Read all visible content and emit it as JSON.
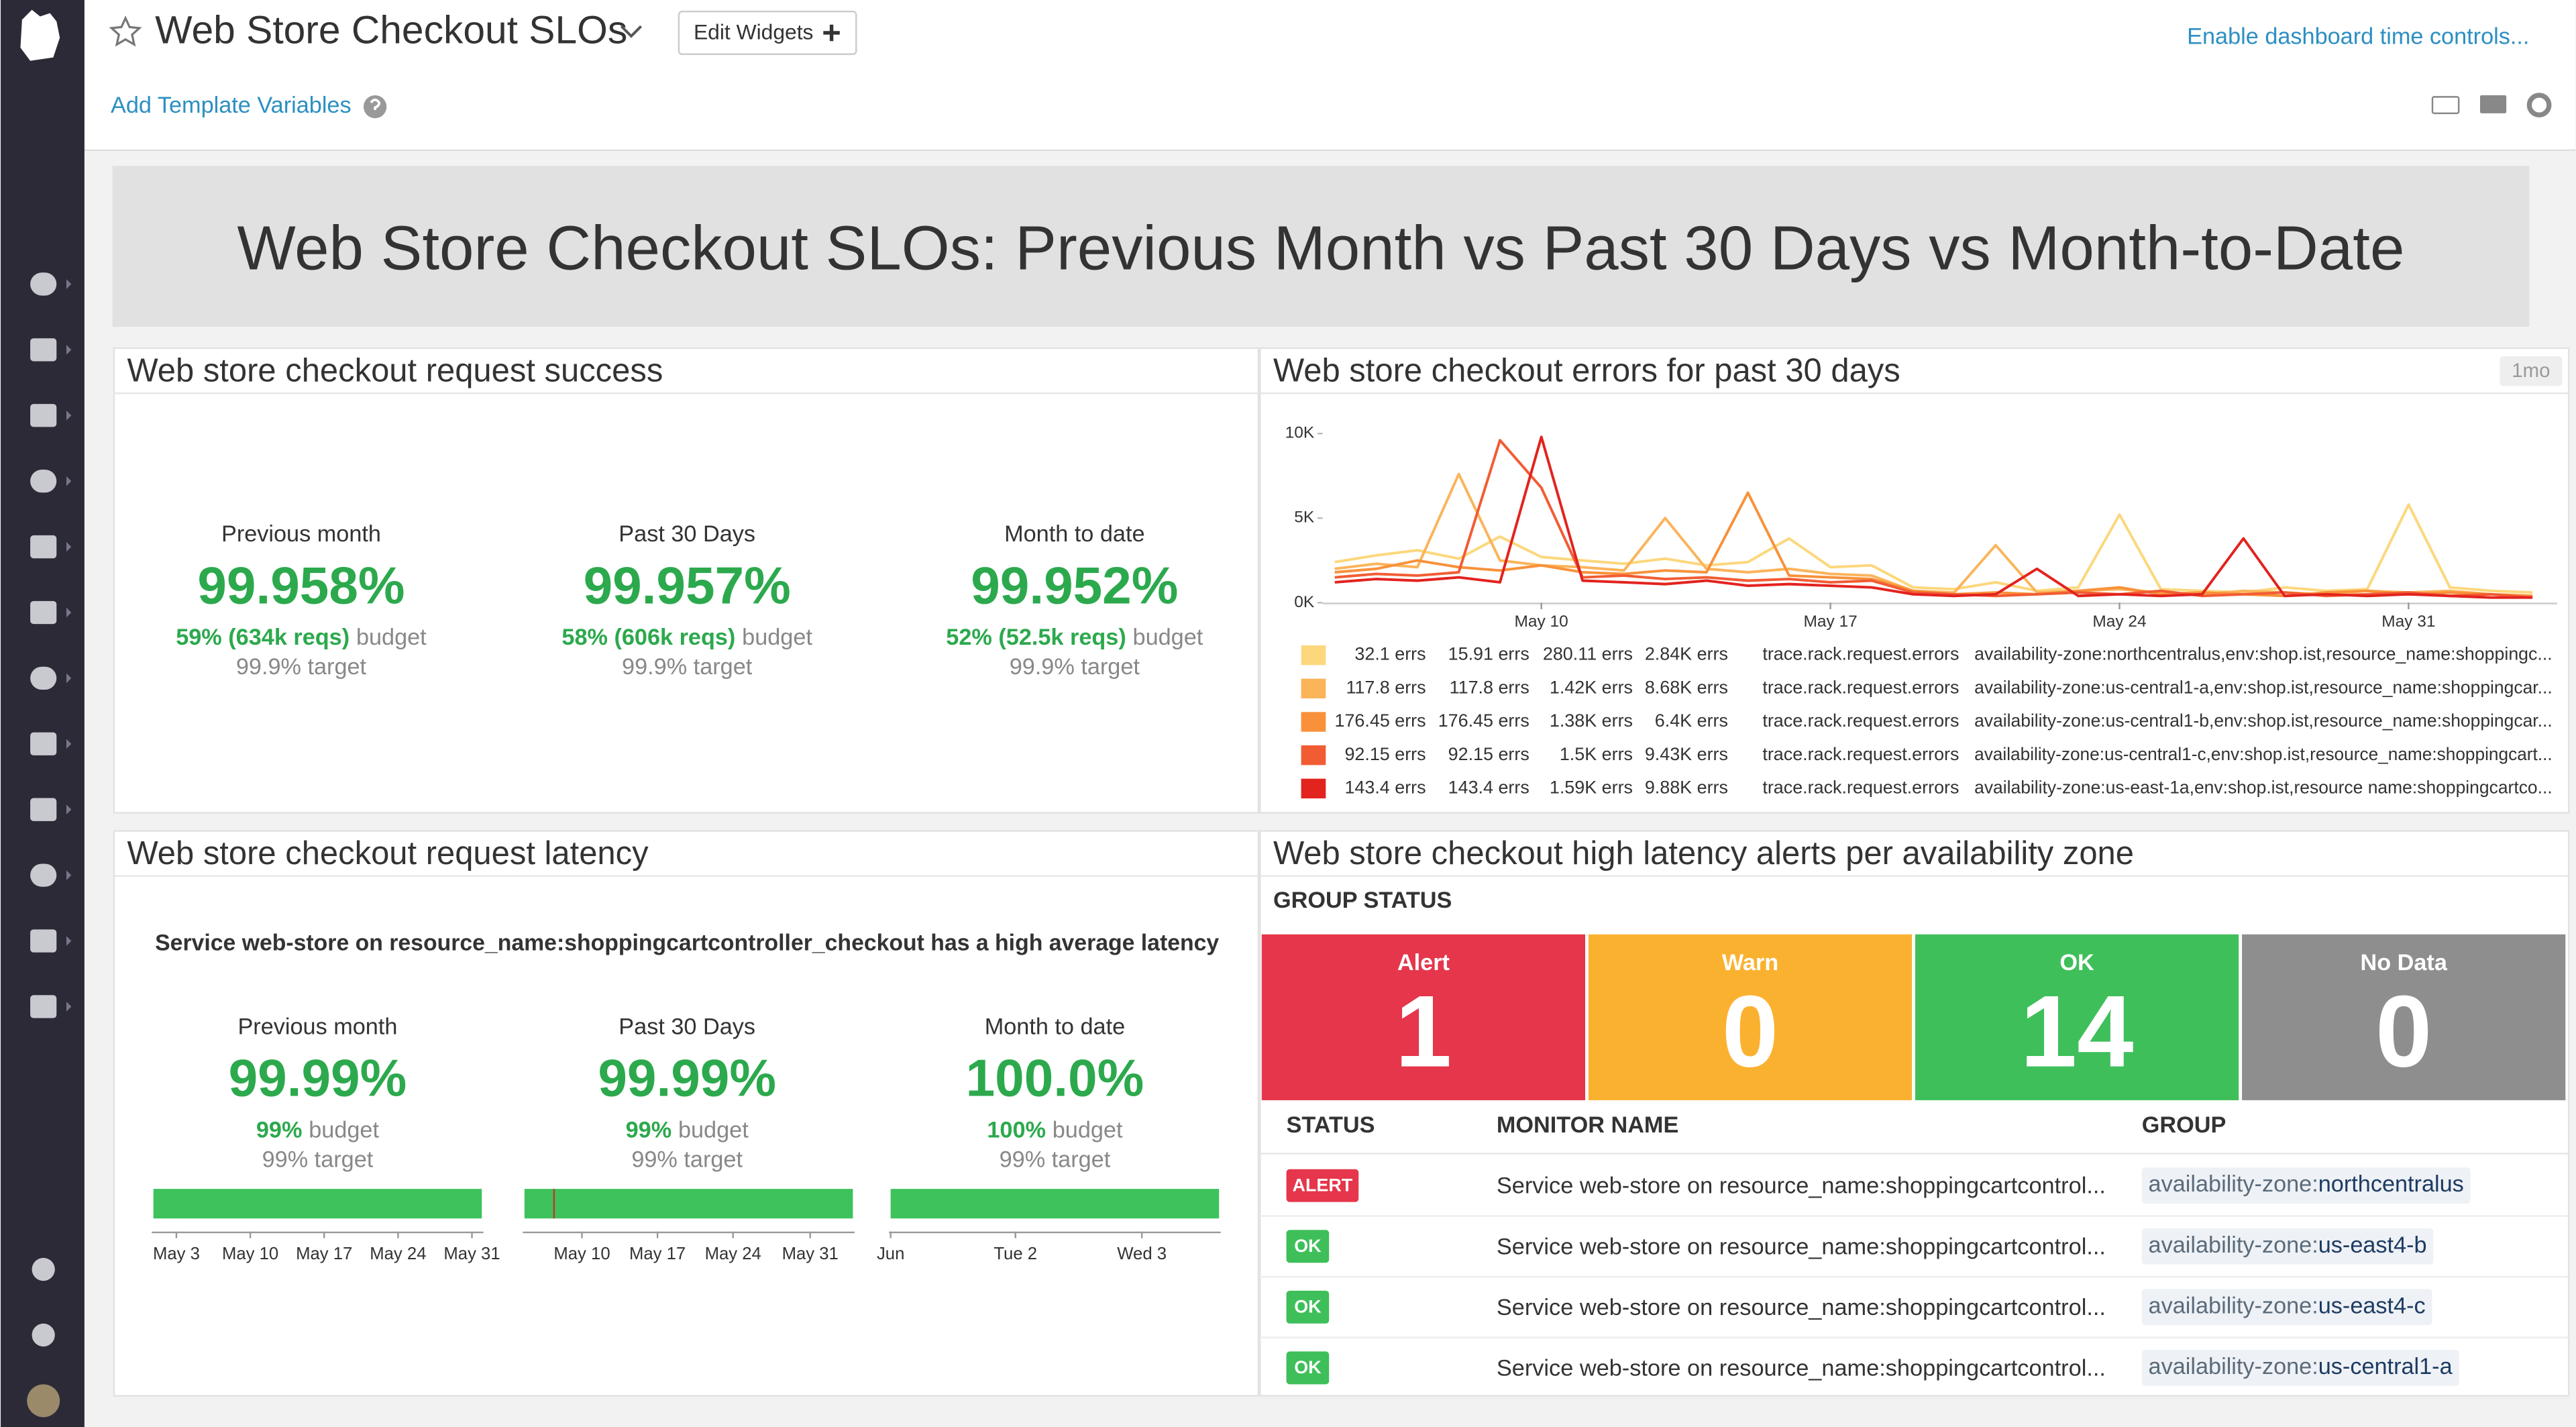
{
  "header": {
    "title": "Web Store Checkout SLOs",
    "edit_button": "Edit Widgets",
    "time_controls": "Enable dashboard time controls...",
    "template_variables": "Add Template Variables"
  },
  "banner": "Web Store Checkout SLOs: Previous Month vs Past 30 Days vs Month-to-Date",
  "slo_success": {
    "title": "Web store checkout request success",
    "columns": [
      {
        "label": "Previous month",
        "value": "99.958%",
        "budget_highlight": "59% (634k reqs)",
        "budget_text": "budget",
        "target": "99.9% target"
      },
      {
        "label": "Past 30 Days",
        "value": "99.957%",
        "budget_highlight": "58% (606k reqs)",
        "budget_text": "budget",
        "target": "99.9% target"
      },
      {
        "label": "Month to date",
        "value": "99.952%",
        "budget_highlight": "52% (52.5k reqs)",
        "budget_text": "budget",
        "target": "99.9% target"
      }
    ]
  },
  "chart_data": {
    "type": "line",
    "title": "Web store checkout errors for past 30 days",
    "time_badge": "1mo",
    "x": [
      5,
      6,
      7,
      8,
      9,
      10,
      11,
      12,
      13,
      14,
      15,
      16,
      17,
      18,
      19,
      20,
      21,
      22,
      23,
      24,
      25,
      26,
      27,
      28,
      29,
      30,
      31,
      32,
      33,
      34
    ],
    "xlim": [
      4.7,
      34.6
    ],
    "xticks": [
      {
        "value": 10,
        "label": "May 10"
      },
      {
        "value": 17,
        "label": "May 17"
      },
      {
        "value": 24,
        "label": "May 24"
      },
      {
        "value": 31,
        "label": "May 31"
      }
    ],
    "ylim": [
      0,
      10000
    ],
    "yticks": [
      {
        "value": 10000,
        "label": "10K"
      },
      {
        "value": 5000,
        "label": "5K"
      },
      {
        "value": 0,
        "label": "0K"
      }
    ],
    "grid": false,
    "series": [
      {
        "name": "availability-zone:northcentralus,env:shop.ist,resource_name:shoppingc...",
        "color": "#fcd77c",
        "metric": "trace.rack.request.errors",
        "stats": [
          "32.1 errs",
          "15.91 errs",
          "280.11 errs",
          "2.84K errs"
        ],
        "values": [
          2400,
          2800,
          3100,
          2600,
          3900,
          2700,
          2500,
          2300,
          2600,
          2200,
          2400,
          3800,
          2100,
          2200,
          900,
          800,
          1200,
          700,
          900,
          5200,
          800,
          700,
          600,
          900,
          700,
          800,
          5800,
          900,
          700,
          600
        ]
      },
      {
        "name": "availability-zone:us-central1-a,env:shop.ist,resource_name:shoppingcar...",
        "color": "#fbb45a",
        "metric": "trace.rack.request.errors",
        "stats": [
          "117.8 errs",
          "117.8 errs",
          "1.42K errs",
          "8.68K errs"
        ],
        "values": [
          2000,
          2300,
          2100,
          7600,
          2500,
          2200,
          2100,
          1900,
          5000,
          2000,
          1800,
          2000,
          1700,
          1600,
          700,
          600,
          3400,
          600,
          700,
          800,
          600,
          500,
          700,
          600,
          500,
          700,
          600,
          700,
          500,
          400
        ]
      },
      {
        "name": "availability-zone:us-central1-b,env:shop.ist,resource_name:shoppingcar...",
        "color": "#f8913a",
        "metric": "trace.rack.request.errors",
        "stats": [
          "176.45 errs",
          "176.45 errs",
          "1.38K errs",
          "6.4K errs"
        ],
        "values": [
          1800,
          2000,
          2500,
          2100,
          1900,
          2200,
          1800,
          1700,
          1900,
          1800,
          6500,
          1600,
          1500,
          1400,
          700,
          500,
          600,
          500,
          700,
          900,
          500,
          600,
          500,
          400,
          600,
          700,
          500,
          600,
          500,
          400
        ]
      },
      {
        "name": "availability-zone:us-central1-c,env:shop.ist,resource_name:shoppingcart...",
        "color": "#f25c33",
        "metric": "trace.rack.request.errors",
        "stats": [
          "92.15 errs",
          "92.15 errs",
          "1.5K errs",
          "9.43K errs"
        ],
        "values": [
          1500,
          1700,
          1600,
          1800,
          9600,
          6800,
          1500,
          1600,
          1400,
          1500,
          1300,
          1400,
          1200,
          1300,
          600,
          500,
          400,
          500,
          600,
          500,
          700,
          400,
          500,
          600,
          400,
          500,
          600,
          400,
          500,
          300
        ]
      },
      {
        "name": "availability-zone:us-east-1a,env:shop.ist,resource name:shoppingcartco...",
        "color": "#e2231e",
        "metric": "trace.rack.request.errors",
        "stats": [
          "143.4 errs",
          "143.4 errs",
          "1.59K errs",
          "9.88K errs"
        ],
        "values": [
          1200,
          1400,
          1300,
          1500,
          1200,
          9800,
          1300,
          1200,
          1100,
          1300,
          1000,
          1100,
          1000,
          900,
          500,
          400,
          500,
          2000,
          400,
          500,
          400,
          500,
          3800,
          400,
          500,
          400,
          500,
          400,
          300,
          300
        ]
      }
    ]
  },
  "latency": {
    "title": "Web store checkout request latency",
    "monitor": "Service web-store on resource_name:shoppingcartcontroller_checkout has a high average latency",
    "columns": [
      {
        "label": "Previous month",
        "value": "99.99%",
        "budget_highlight": "99%",
        "budget_text": "budget",
        "target": "99% target",
        "axis_labels": [
          "May 3",
          "May 10",
          "May 17",
          "May 24",
          "May 31"
        ]
      },
      {
        "label": "Past 30 Days",
        "value": "99.99%",
        "budget_highlight": "99%",
        "budget_text": "budget",
        "target": "99% target",
        "axis_labels": [
          "May 10",
          "May 17",
          "May 24",
          "May 31"
        ]
      },
      {
        "label": "Month to date",
        "value": "100.0%",
        "budget_highlight": "100%",
        "budget_text": "budget",
        "target": "99% target",
        "axis_labels": [
          "Jun",
          "Tue 2",
          "Wed 3"
        ]
      }
    ]
  },
  "alerts": {
    "title": "Web store checkout high latency alerts per availability zone",
    "group_status": "GROUP STATUS",
    "tiles": [
      {
        "label": "Alert",
        "count": 1,
        "color": "#e5364b"
      },
      {
        "label": "Warn",
        "count": 0,
        "color": "#fbb130"
      },
      {
        "label": "OK",
        "count": 14,
        "color": "#3ebf5a"
      },
      {
        "label": "No Data",
        "count": 0,
        "color": "#8e8e8e"
      }
    ],
    "columns": [
      "STATUS",
      "MONITOR NAME",
      "GROUP"
    ],
    "rows": [
      {
        "status": "ALERT",
        "status_color": "#e5364b",
        "monitor": "Service web-store on resource_name:shoppingcartcontrol...",
        "group_key": "availability-zone:",
        "group_value": "northcentralus"
      },
      {
        "status": "OK",
        "status_color": "#3ebf5a",
        "monitor": "Service web-store on resource_name:shoppingcartcontrol...",
        "group_key": "availability-zone:",
        "group_value": "us-east4-b"
      },
      {
        "status": "OK",
        "status_color": "#3ebf5a",
        "monitor": "Service web-store on resource_name:shoppingcartcontrol...",
        "group_key": "availability-zone:",
        "group_value": "us-east4-c"
      },
      {
        "status": "OK",
        "status_color": "#3ebf5a",
        "monitor": "Service web-store on resource_name:shoppingcartcontrol...",
        "group_key": "availability-zone:",
        "group_value": "us-central1-a"
      }
    ]
  }
}
